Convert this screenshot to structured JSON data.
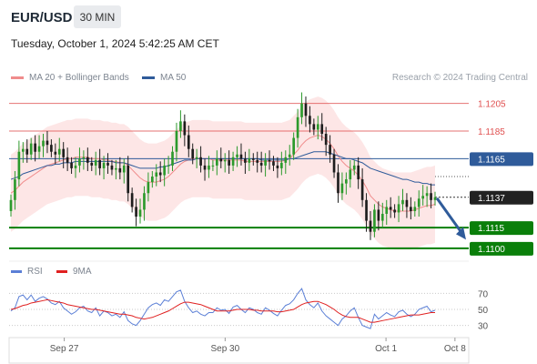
{
  "header": {
    "pair": "EUR/USD",
    "timeframe": "30 MIN",
    "timestamp": "Tuesday, October 1, 2024 5:42:25 AM CET"
  },
  "legend": {
    "ma20_label": "MA 20 + Bollinger Bands",
    "ma20_color": "#f08c8c",
    "ma50_label": "MA 50",
    "ma50_color": "#2f5b9a"
  },
  "credit": "Research © 2024 Trading Central",
  "rsi_legend": {
    "rsi_label": "RSI",
    "rsi_color": "#5b7fd6",
    "ma_label": "9MA",
    "ma_color": "#e02020"
  },
  "chart_data": [
    {
      "type": "candlestick",
      "title": "EUR/USD 30 MIN",
      "ylim": [
        1.1094,
        1.1214
      ],
      "x_tick_labels": [
        "Sep 27",
        "Sep 30",
        "Oct 1",
        "Oct 8"
      ],
      "x_tick_positions": [
        0.12,
        0.47,
        0.82,
        0.97
      ],
      "levels": [
        {
          "label": "1.1205",
          "value": 1.1205,
          "kind": "resistance",
          "color": "#e05050"
        },
        {
          "label": "1.1185",
          "value": 1.1185,
          "kind": "resistance",
          "color": "#e05050"
        },
        {
          "label": "1.1165",
          "value": 1.1165,
          "kind": "pivot",
          "color": "#2f5b9a"
        },
        {
          "label": "1.1137",
          "value": 1.1137,
          "kind": "last_price",
          "color": "#333333"
        },
        {
          "label": "1.1115",
          "value": 1.1115,
          "kind": "support",
          "color": "#0a7f0a"
        },
        {
          "label": "1.1100",
          "value": 1.11,
          "kind": "support",
          "color": "#0a7f0a"
        }
      ],
      "forecast_arrow": {
        "from": 1.1137,
        "to": 1.1105,
        "color": "#2f5b9a"
      },
      "close": [
        1.1135,
        1.115,
        1.117,
        1.1172,
        1.1168,
        1.1176,
        1.117,
        1.1174,
        1.1178,
        1.1175,
        1.117,
        1.1168,
        1.1172,
        1.1166,
        1.1162,
        1.1158,
        1.116,
        1.1165,
        1.1166,
        1.1162,
        1.116,
        1.1164,
        1.1158,
        1.1162,
        1.116,
        1.1157,
        1.1158,
        1.1155,
        1.116,
        1.114,
        1.113,
        1.1123,
        1.1128,
        1.114,
        1.1148,
        1.1152,
        1.1155,
        1.1153,
        1.116,
        1.116,
        1.117,
        1.1185,
        1.1192,
        1.1182,
        1.1172,
        1.1165,
        1.1166,
        1.116,
        1.1157,
        1.116,
        1.116,
        1.1165,
        1.1163,
        1.1164,
        1.116,
        1.1166,
        1.1168,
        1.1165,
        1.1162,
        1.1165,
        1.1164,
        1.1162,
        1.116,
        1.1164,
        1.1163,
        1.116,
        1.1158,
        1.1162,
        1.1166,
        1.1168,
        1.118,
        1.1195,
        1.1205,
        1.1196,
        1.119,
        1.1186,
        1.119,
        1.1183,
        1.1175,
        1.1168,
        1.1155,
        1.114,
        1.1147,
        1.115,
        1.1157,
        1.116,
        1.115,
        1.1135,
        1.112,
        1.1112,
        1.1128,
        1.112,
        1.1125,
        1.113,
        1.1128,
        1.1126,
        1.1132,
        1.1135,
        1.113,
        1.1127,
        1.113,
        1.1136,
        1.1138,
        1.114,
        1.1135,
        1.1137
      ],
      "ma20": [
        1.114,
        1.1142,
        1.1145,
        1.1148,
        1.115,
        1.1152,
        1.1154,
        1.1156,
        1.1158,
        1.116,
        1.1161,
        1.1162,
        1.1163,
        1.1164,
        1.1165,
        1.1165,
        1.1166,
        1.1166,
        1.1166,
        1.1166,
        1.1165,
        1.1165,
        1.1165,
        1.1164,
        1.1164,
        1.1163,
        1.1163,
        1.1162,
        1.1162,
        1.116,
        1.1157,
        1.1154,
        1.1151,
        1.1149,
        1.1148,
        1.1148,
        1.1148,
        1.1149,
        1.115,
        1.1152,
        1.1155,
        1.1158,
        1.1161,
        1.1163,
        1.1164,
        1.1165,
        1.1165,
        1.1165,
        1.1165,
        1.1165,
        1.1164,
        1.1164,
        1.1164,
        1.1164,
        1.1164,
        1.1164,
        1.1164,
        1.1164,
        1.1163,
        1.1163,
        1.1163,
        1.1163,
        1.1163,
        1.1163,
        1.1163,
        1.1163,
        1.1163,
        1.1163,
        1.1164,
        1.1165,
        1.1168,
        1.1171,
        1.1175,
        1.1178,
        1.118,
        1.1181,
        1.1182,
        1.1181,
        1.1179,
        1.1176,
        1.1172,
        1.1167,
        1.1163,
        1.116,
        1.1158,
        1.1156,
        1.1153,
        1.1149,
        1.1144,
        1.1138,
        1.1135,
        1.1132,
        1.113,
        1.1129,
        1.1128,
        1.1127,
        1.1127,
        1.1127,
        1.1127,
        1.1127,
        1.1128,
        1.1129,
        1.113,
        1.1131,
        1.1131,
        1.1132
      ],
      "ma50": [
        1.115,
        1.1151,
        1.1152,
        1.1154,
        1.1155,
        1.1156,
        1.1157,
        1.1158,
        1.1159,
        1.116,
        1.116,
        1.1161,
        1.1161,
        1.1162,
        1.1162,
        1.1162,
        1.1163,
        1.1163,
        1.1163,
        1.1163,
        1.1163,
        1.1163,
        1.1163,
        1.1163,
        1.1163,
        1.1163,
        1.1162,
        1.1162,
        1.1162,
        1.1161,
        1.116,
        1.1159,
        1.1158,
        1.1158,
        1.1158,
        1.1158,
        1.1158,
        1.1159,
        1.1159,
        1.116,
        1.1161,
        1.1162,
        1.1163,
        1.1164,
        1.1164,
        1.1164,
        1.1165,
        1.1165,
        1.1165,
        1.1165,
        1.1165,
        1.1165,
        1.1165,
        1.1165,
        1.1165,
        1.1165,
        1.1165,
        1.1165,
        1.1165,
        1.1165,
        1.1165,
        1.1165,
        1.1164,
        1.1164,
        1.1164,
        1.1164,
        1.1164,
        1.1164,
        1.1164,
        1.1165,
        1.1165,
        1.1166,
        1.1167,
        1.1168,
        1.1169,
        1.117,
        1.117,
        1.117,
        1.117,
        1.1169,
        1.1168,
        1.1167,
        1.1166,
        1.1165,
        1.1165,
        1.1164,
        1.1163,
        1.1162,
        1.116,
        1.1158,
        1.1157,
        1.1156,
        1.1155,
        1.1154,
        1.1153,
        1.1152,
        1.1151,
        1.115,
        1.115,
        1.1149,
        1.1148,
        1.1148,
        1.1147,
        1.1147,
        1.1146,
        1.1146
      ]
    },
    {
      "type": "line",
      "title": "RSI",
      "ylim": [
        25,
        75
      ],
      "y_tick_labels": [
        "70",
        "50",
        "30"
      ],
      "y_ticks": [
        70,
        50,
        30
      ],
      "series": [
        {
          "name": "RSI",
          "values": [
            48,
            52,
            66,
            68,
            62,
            68,
            60,
            64,
            66,
            63,
            58,
            56,
            60,
            52,
            48,
            44,
            47,
            52,
            54,
            48,
            46,
            52,
            42,
            48,
            46,
            42,
            44,
            40,
            47,
            36,
            32,
            30,
            36,
            44,
            52,
            56,
            58,
            55,
            62,
            60,
            66,
            72,
            74,
            60,
            52,
            46,
            48,
            44,
            42,
            46,
            46,
            52,
            49,
            50,
            45,
            53,
            55,
            50,
            46,
            52,
            50,
            46,
            44,
            52,
            49,
            45,
            42,
            49,
            55,
            57,
            62,
            70,
            76,
            62,
            56,
            52,
            58,
            48,
            42,
            38,
            34,
            30,
            38,
            42,
            48,
            52,
            40,
            30,
            28,
            26,
            44,
            38,
            42,
            46,
            43,
            41,
            47,
            49,
            44,
            41,
            44,
            50,
            52,
            54,
            47,
            49
          ]
        },
        {
          "name": "9MA",
          "values": [
            50,
            51,
            53,
            55,
            56,
            58,
            59,
            60,
            61,
            62,
            61,
            60,
            59,
            58,
            56,
            55,
            54,
            53,
            52,
            51,
            50,
            50,
            49,
            48,
            47,
            46,
            45,
            44,
            44,
            43,
            42,
            40,
            39,
            38,
            39,
            40,
            42,
            44,
            46,
            48,
            51,
            54,
            57,
            59,
            59,
            58,
            57,
            56,
            54,
            52,
            50,
            48,
            48,
            48,
            48,
            49,
            50,
            50,
            50,
            50,
            49,
            49,
            48,
            48,
            48,
            48,
            47,
            47,
            48,
            49,
            50,
            53,
            56,
            58,
            59,
            60,
            60,
            58,
            56,
            53,
            50,
            46,
            43,
            41,
            40,
            40,
            40,
            38,
            36,
            34,
            34,
            35,
            36,
            37,
            38,
            39,
            40,
            41,
            42,
            43,
            43,
            43,
            44,
            45,
            46,
            46
          ]
        }
      ]
    }
  ]
}
